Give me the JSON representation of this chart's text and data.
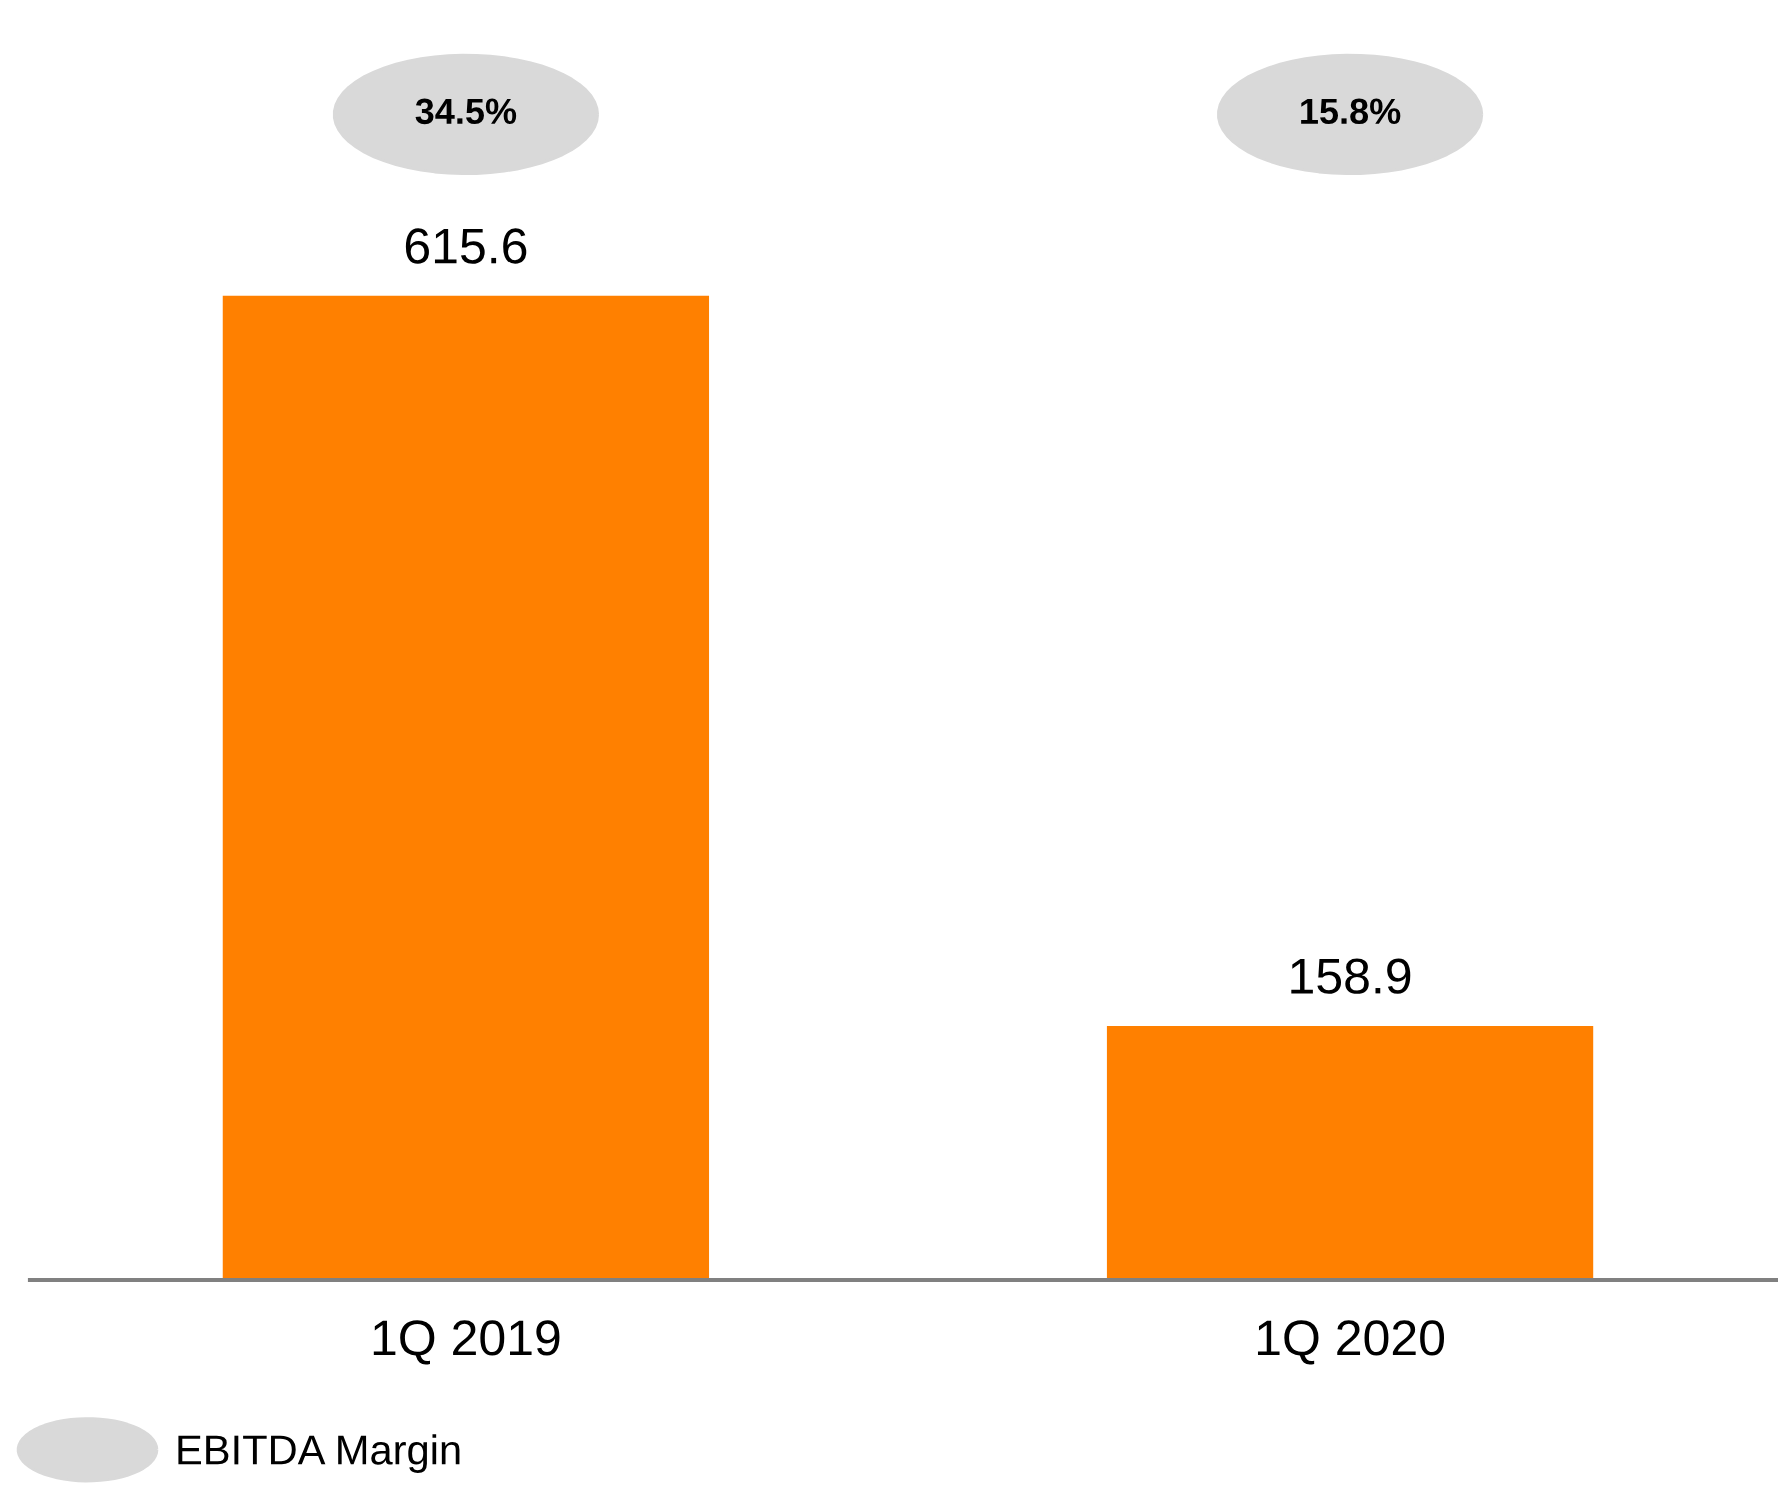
{
  "chart_data": {
    "type": "bar",
    "categories": [
      "1Q 2019",
      "1Q 2020"
    ],
    "series": [
      {
        "color": "#ff8000",
        "values": [
          615.6,
          158.9
        ]
      },
      {
        "name": "EBITDA Margin",
        "type": "scatter",
        "color": "#d9d9d9",
        "values": [
          null,
          null
        ]
      }
    ],
    "annotations": [
      "34.5%",
      "15.8%"
    ],
    "data_labels": true,
    "tick_labels": "x",
    "grid": false,
    "legend": "bottom left"
  }
}
